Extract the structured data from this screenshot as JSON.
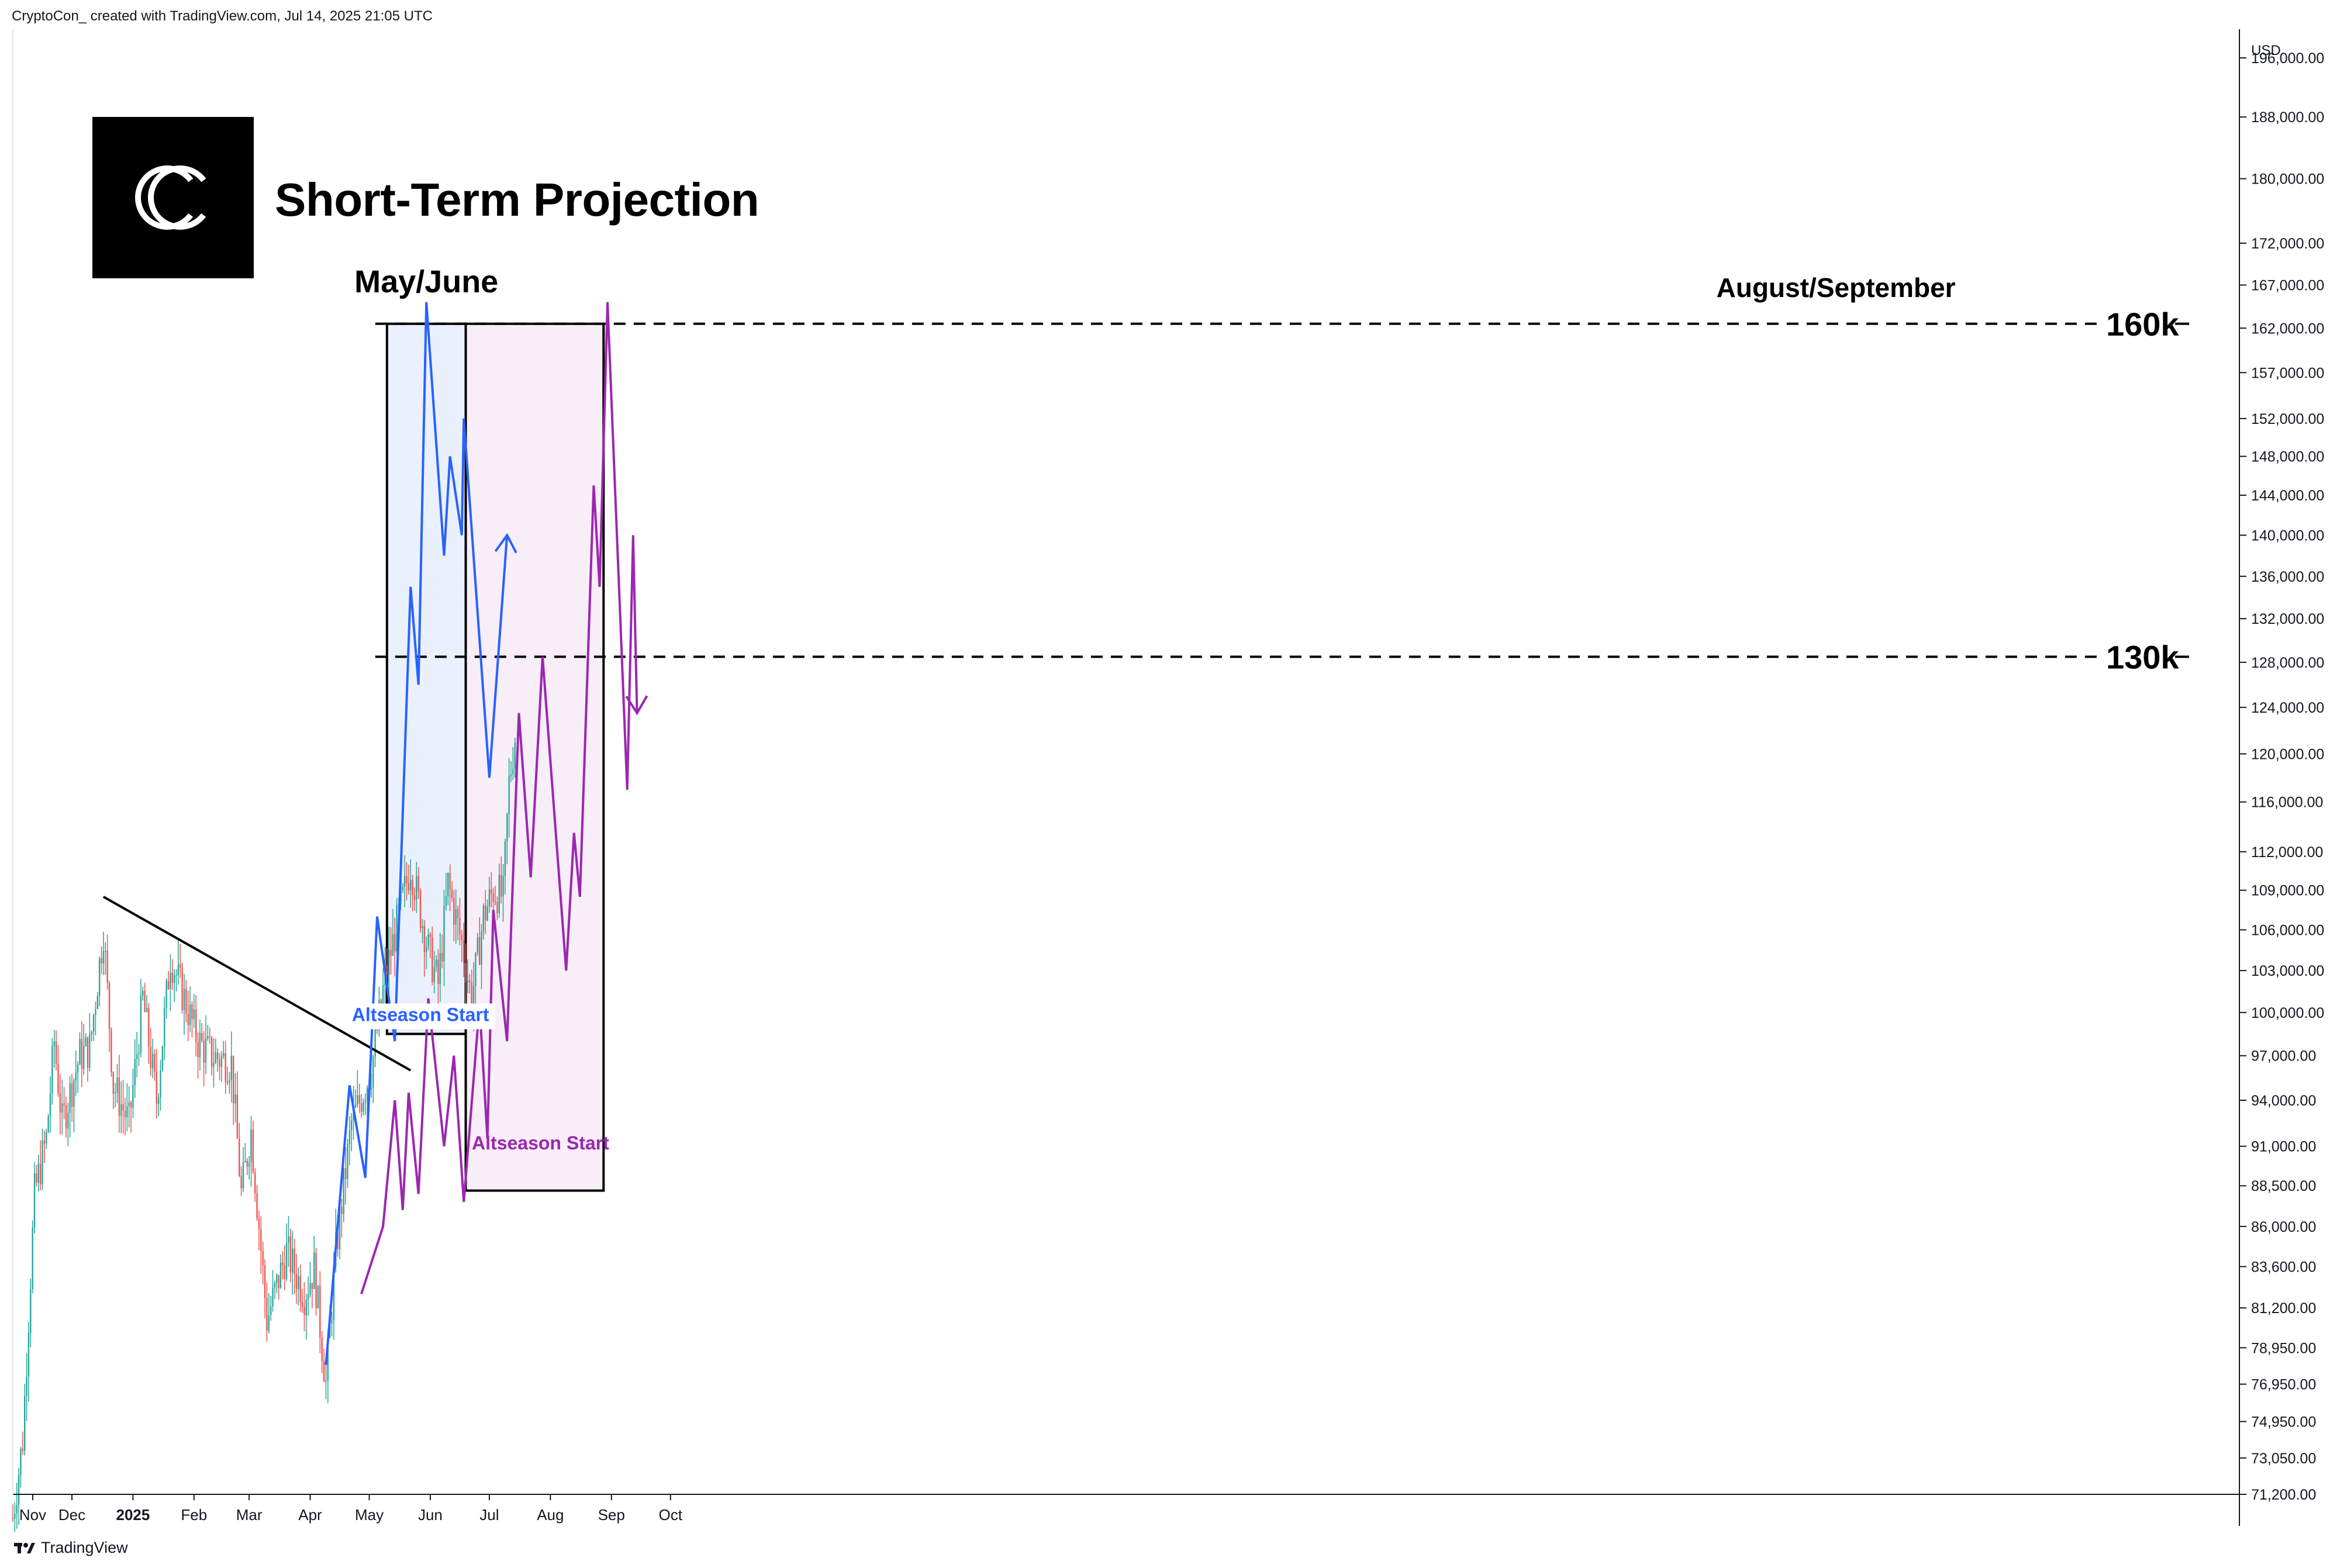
{
  "header": {
    "text": "CryptoCon_  created with TradingView.com, Jul 14, 2025 21:05 UTC"
  },
  "footer": {
    "brand": "TradingView"
  },
  "logo": {
    "glyph": "C",
    "icon": "cryptocon-logo-icon"
  },
  "chart_data": {
    "type": "candlestick",
    "title": "Short-Term Projection",
    "currency": "USD",
    "xlabels": [
      "Nov",
      "Dec",
      "2025",
      "Feb",
      "Mar",
      "Apr",
      "May",
      "Jun",
      "Jul",
      "Aug",
      "Sep",
      "Oct"
    ],
    "yticks": [
      "196,000.00",
      "188,000.00",
      "180,000.00",
      "172,000.00",
      "167,000.00",
      "162,000.00",
      "157,000.00",
      "152,000.00",
      "148,000.00",
      "144,000.00",
      "140,000.00",
      "136,000.00",
      "132,000.00",
      "128,000.00",
      "124,000.00",
      "120,000.00",
      "116,000.00",
      "112,000.00",
      "109,000.00",
      "106,000.00",
      "103,000.00",
      "100,000.00",
      "97,000.00",
      "94,000.00",
      "91,000.00",
      "88,500.00",
      "86,000.00",
      "83,600.00",
      "81,200.00",
      "78,950.00",
      "76,950.00",
      "74,950.00",
      "73,050.00",
      "71,200.00"
    ],
    "ylim": [
      71200,
      200000
    ],
    "y_scale": "log",
    "up_color": "#26a69a",
    "down_color": "#ef5350",
    "price_path": [
      [
        "Nov 1",
        70000
      ],
      [
        "Nov 6",
        74000
      ],
      [
        "Nov 12",
        88000
      ],
      [
        "Nov 18",
        91500
      ],
      [
        "Nov 22",
        98000
      ],
      [
        "Nov 26",
        92500
      ],
      [
        "Dec 5",
        97000
      ],
      [
        "Dec 10",
        97500
      ],
      [
        "Dec 17",
        106000
      ],
      [
        "Dec 22",
        95000
      ],
      [
        "Dec 30",
        92500
      ],
      [
        "Jan 6",
        101000
      ],
      [
        "Jan 13",
        94000
      ],
      [
        "Jan 20",
        104000
      ],
      [
        "Jan 27",
        101000
      ],
      [
        "Feb 3",
        98000
      ],
      [
        "Feb 10",
        97000
      ],
      [
        "Feb 20",
        96500
      ],
      [
        "Feb 25",
        88000
      ],
      [
        "Mar 2",
        92000
      ],
      [
        "Mar 10",
        80500
      ],
      [
        "Mar 20",
        84500
      ],
      [
        "Mar 29",
        82000
      ],
      [
        "Apr 3",
        83500
      ],
      [
        "Apr 9",
        77000
      ],
      [
        "Apr 14",
        84500
      ],
      [
        "Apr 22",
        92500
      ],
      [
        "May 2",
        96000
      ],
      [
        "May 9",
        102500
      ],
      [
        "May 22",
        111000
      ],
      [
        "May 31",
        104500
      ],
      [
        "Jun 5",
        102000
      ],
      [
        "Jun 10",
        109500
      ],
      [
        "Jun 17",
        105000
      ],
      [
        "Jun 22",
        101000
      ],
      [
        "Jun 28",
        107000
      ],
      [
        "Jul 3",
        109000
      ],
      [
        "Jul 8",
        108500
      ],
      [
        "Jul 11",
        117500
      ],
      [
        "Jul 14",
        121500
      ]
    ],
    "projections": [
      {
        "name": "May/June",
        "color": "#2962ff",
        "points": [
          [
            "Apr 9",
            78000
          ],
          [
            "Apr 21",
            95000
          ],
          [
            "Apr 29",
            89000
          ],
          [
            "May 5",
            107000
          ],
          [
            "May 14",
            98000
          ],
          [
            "May 22",
            135000
          ],
          [
            "May 26",
            126000
          ],
          [
            "May 30",
            165000
          ],
          [
            "Jun 8",
            138000
          ],
          [
            "Jun 11",
            148000
          ],
          [
            "Jun 17",
            140000
          ],
          [
            "Jun 18",
            152000
          ],
          [
            "Jul 1",
            118000
          ],
          [
            "Jul 10",
            140000
          ]
        ]
      },
      {
        "name": "August/September",
        "color": "#9c27b0",
        "points": [
          [
            "Apr 27",
            82000
          ],
          [
            "May 8",
            86000
          ],
          [
            "May 14",
            94000
          ],
          [
            "May 18",
            87000
          ],
          [
            "May 21",
            94500
          ],
          [
            "May 26",
            88000
          ],
          [
            "May 31",
            101000
          ],
          [
            "Jun 8",
            91000
          ],
          [
            "Jun 13",
            97000
          ],
          [
            "Jun 18",
            87500
          ],
          [
            "Jun 26",
            100500
          ],
          [
            "Jun 30",
            91500
          ],
          [
            "Jul 3",
            107500
          ],
          [
            "Jul 10",
            98000
          ],
          [
            "Jul 16",
            123500
          ],
          [
            "Jul 22",
            110000
          ],
          [
            "Jul 28",
            128500
          ],
          [
            "Aug 9",
            103000
          ],
          [
            "Aug 13",
            113500
          ],
          [
            "Aug 16",
            108500
          ],
          [
            "Aug 23",
            145000
          ],
          [
            "Aug 26",
            135000
          ],
          [
            "Aug 30",
            165000
          ],
          [
            "Sep 9",
            117000
          ],
          [
            "Sep 12",
            140000
          ],
          [
            "Sep 14",
            123500
          ]
        ]
      }
    ],
    "trendline": {
      "from": [
        "Dec 17",
        108500
      ],
      "to": [
        "May 22",
        96000
      ]
    },
    "levels": [
      {
        "label": "160k",
        "value": 162500
      },
      {
        "label": "130k",
        "value": 128500
      }
    ],
    "zones": [
      {
        "label": "May/June",
        "annotation": "Altseason Start",
        "x_from": "May 10",
        "x_to": "Jun 19",
        "y_from": 98500,
        "y_to": 162500,
        "fill": "#eaf1fc"
      },
      {
        "label": "August/September",
        "annotation": "Altseason Start",
        "x_from": "Jun 19",
        "x_to": "Aug 28",
        "y_from": 88200,
        "y_to": 162500,
        "fill": "#f7eef8"
      }
    ]
  }
}
